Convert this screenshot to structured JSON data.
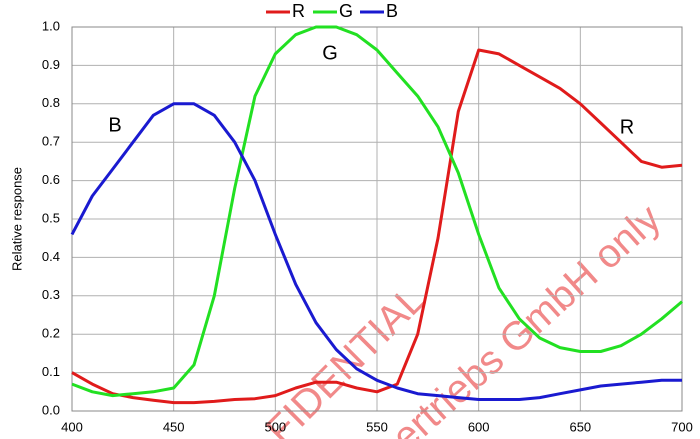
{
  "chart_data": {
    "type": "line",
    "y_label": "Relative response",
    "x": [
      400,
      410,
      420,
      430,
      440,
      450,
      460,
      470,
      480,
      490,
      500,
      510,
      520,
      530,
      540,
      550,
      560,
      570,
      580,
      590,
      600,
      610,
      620,
      630,
      640,
      650,
      660,
      670,
      680,
      690,
      700
    ],
    "series": [
      {
        "name": "R",
        "color": "#e01b1b",
        "values": [
          0.1,
          0.07,
          0.045,
          0.035,
          0.028,
          0.022,
          0.022,
          0.025,
          0.03,
          0.032,
          0.04,
          0.06,
          0.075,
          0.075,
          0.06,
          0.05,
          0.07,
          0.2,
          0.45,
          0.78,
          0.94,
          0.93,
          0.9,
          0.87,
          0.84,
          0.8,
          0.75,
          0.7,
          0.65,
          0.635,
          0.64
        ]
      },
      {
        "name": "G",
        "color": "#22e022",
        "values": [
          0.07,
          0.05,
          0.04,
          0.045,
          0.05,
          0.06,
          0.12,
          0.3,
          0.58,
          0.82,
          0.93,
          0.98,
          1.0,
          1.0,
          0.98,
          0.94,
          0.88,
          0.82,
          0.74,
          0.62,
          0.46,
          0.32,
          0.24,
          0.19,
          0.165,
          0.155,
          0.155,
          0.17,
          0.2,
          0.24,
          0.285
        ]
      },
      {
        "name": "B",
        "color": "#1a1ad0",
        "values": [
          0.46,
          0.56,
          0.63,
          0.7,
          0.77,
          0.8,
          0.8,
          0.77,
          0.7,
          0.6,
          0.46,
          0.33,
          0.23,
          0.16,
          0.11,
          0.08,
          0.06,
          0.045,
          0.04,
          0.035,
          0.03,
          0.03,
          0.03,
          0.035,
          0.045,
          0.055,
          0.065,
          0.07,
          0.075,
          0.08,
          0.08
        ]
      }
    ],
    "annotations": [
      "B",
      "G",
      "R"
    ],
    "watermark": [
      "FIDENTIAL",
      "ertriebs GmbH only"
    ],
    "xlim": [
      400,
      700
    ],
    "xticks": [
      400,
      450,
      500,
      550,
      600,
      650,
      700
    ],
    "ylim": [
      0,
      1
    ],
    "yticks": [
      {
        "value": 0,
        "label": "0.0"
      },
      0.1,
      0.2,
      0.3,
      0.4,
      0.5,
      0.6,
      0.7,
      0.8,
      0.9,
      {
        "value": 1,
        "label": "1.0"
      }
    ],
    "grid": true
  }
}
